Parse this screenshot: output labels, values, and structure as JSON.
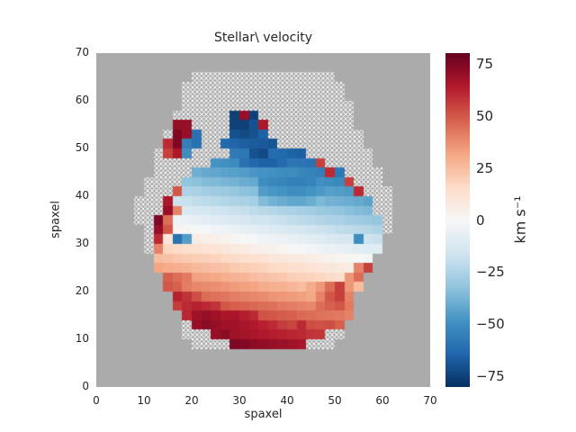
{
  "title": "Stellar\\ velocity",
  "axis": {
    "xlabel": "spaxel",
    "ylabel": "spaxel",
    "xticks": [
      0,
      10,
      20,
      30,
      40,
      50,
      60,
      70
    ],
    "yticks": [
      0,
      10,
      20,
      30,
      40,
      50,
      60,
      70
    ]
  },
  "colorbar": {
    "label": "km s⁻¹",
    "vmin": -80,
    "vmax": 80,
    "ticks": [
      {
        "v": 75,
        "label": "75"
      },
      {
        "v": 50,
        "label": "50"
      },
      {
        "v": 25,
        "label": "25"
      },
      {
        "v": 0,
        "label": "0"
      },
      {
        "v": -25,
        "label": "−25"
      },
      {
        "v": -50,
        "label": "−50"
      },
      {
        "v": -75,
        "label": "−75"
      }
    ],
    "cmap": [
      "#053061",
      "#2166ac",
      "#4393c3",
      "#92c5de",
      "#d1e5f0",
      "#f7f7f7",
      "#fddbc7",
      "#f4a582",
      "#d6604d",
      "#b2182b",
      "#67001f"
    ]
  },
  "colors": {
    "figure_bg": "#ffffff",
    "axes_bg": "#ababab",
    "hatch": "#ffffff",
    "text": "#262626"
  },
  "chart_data": {
    "type": "heatmap",
    "title": "Stellar\\ velocity",
    "xlabel": "spaxel",
    "ylabel": "spaxel",
    "units": "km s⁻¹",
    "xlim": [
      0,
      70
    ],
    "ylim": [
      0,
      70
    ],
    "value_range": [
      -75,
      75
    ],
    "cell_spaxels": 2,
    "grid_note": "35x35 grid, row 0 = top (y=68-70), col 0 = left (x=0-2); numbers = stellar velocity in km/s, 'h' = hatched no-data spaxel inside hexagonal IFU footprint, '.' = outside footprint (gray)",
    "grid": [
      [
        ".",
        ".",
        ".",
        ".",
        ".",
        ".",
        ".",
        ".",
        ".",
        ".",
        ".",
        ".",
        ".",
        ".",
        ".",
        ".",
        ".",
        ".",
        ".",
        ".",
        ".",
        ".",
        ".",
        ".",
        ".",
        ".",
        ".",
        ".",
        ".",
        ".",
        ".",
        ".",
        ".",
        ".",
        "."
      ],
      [
        ".",
        ".",
        ".",
        ".",
        ".",
        ".",
        ".",
        ".",
        ".",
        ".",
        ".",
        ".",
        ".",
        ".",
        ".",
        ".",
        ".",
        ".",
        ".",
        ".",
        ".",
        ".",
        ".",
        ".",
        ".",
        ".",
        ".",
        ".",
        ".",
        ".",
        ".",
        ".",
        ".",
        ".",
        "."
      ],
      [
        ".",
        ".",
        ".",
        ".",
        ".",
        ".",
        ".",
        ".",
        ".",
        ".",
        "h",
        "h",
        "h",
        "h",
        "h",
        "h",
        "h",
        "h",
        "h",
        "h",
        "h",
        "h",
        "h",
        "h",
        "h",
        ".",
        ".",
        ".",
        ".",
        ".",
        ".",
        ".",
        ".",
        ".",
        "."
      ],
      [
        ".",
        ".",
        ".",
        ".",
        ".",
        ".",
        ".",
        ".",
        ".",
        "h",
        "h",
        "h",
        "h",
        "h",
        "h",
        "h",
        "h",
        "h",
        "h",
        "h",
        "h",
        "h",
        "h",
        "h",
        "h",
        "h",
        ".",
        ".",
        ".",
        ".",
        ".",
        ".",
        ".",
        ".",
        "."
      ],
      [
        ".",
        ".",
        ".",
        ".",
        ".",
        ".",
        ".",
        ".",
        ".",
        "h",
        "h",
        "h",
        "h",
        "h",
        "h",
        "h",
        "h",
        "h",
        "h",
        "h",
        "h",
        "h",
        "h",
        "h",
        "h",
        "h",
        ".",
        ".",
        ".",
        ".",
        ".",
        ".",
        ".",
        ".",
        "."
      ],
      [
        ".",
        ".",
        ".",
        ".",
        ".",
        ".",
        ".",
        ".",
        ".",
        "h",
        "h",
        "h",
        "h",
        "h",
        "h",
        "h",
        "h",
        "h",
        "h",
        "h",
        "h",
        "h",
        "h",
        "h",
        "h",
        "h",
        "h",
        ".",
        ".",
        ".",
        ".",
        ".",
        ".",
        ".",
        "."
      ],
      [
        ".",
        ".",
        ".",
        ".",
        ".",
        ".",
        ".",
        ".",
        "h",
        "h",
        "h",
        "h",
        "h",
        "h",
        -75,
        70,
        -75,
        "h",
        "h",
        "h",
        "h",
        "h",
        "h",
        "h",
        "h",
        "h",
        "h",
        ".",
        ".",
        ".",
        ".",
        ".",
        ".",
        ".",
        "."
      ],
      [
        ".",
        ".",
        ".",
        ".",
        ".",
        ".",
        ".",
        ".",
        70,
        70,
        "h",
        "h",
        "h",
        "h",
        -75,
        -75,
        -70,
        65,
        "h",
        "h",
        "h",
        "h",
        "h",
        "h",
        "h",
        "h",
        "h",
        ".",
        ".",
        ".",
        ".",
        ".",
        ".",
        ".",
        "."
      ],
      [
        ".",
        ".",
        ".",
        ".",
        ".",
        ".",
        ".",
        "h",
        75,
        70,
        -60,
        "h",
        "h",
        "h",
        -70,
        -72,
        -70,
        -65,
        "h",
        "h",
        "h",
        "h",
        "h",
        "h",
        "h",
        "h",
        "h",
        "h",
        ".",
        ".",
        ".",
        ".",
        ".",
        ".",
        "."
      ],
      [
        ".",
        ".",
        ".",
        ".",
        ".",
        ".",
        ".",
        60,
        75,
        -55,
        -60,
        "h",
        "h",
        -63,
        -64,
        -66,
        -67,
        -68,
        -69,
        "h",
        "h",
        "h",
        "h",
        "h",
        "h",
        "h",
        "h",
        "h",
        ".",
        ".",
        ".",
        ".",
        ".",
        ".",
        "."
      ],
      [
        ".",
        ".",
        ".",
        ".",
        ".",
        ".",
        "h",
        55,
        65,
        -50,
        "h",
        "h",
        "h",
        "h",
        -57,
        -58,
        -70,
        -72,
        -62,
        -63,
        -65,
        -66,
        "h",
        "h",
        "h",
        "h",
        "h",
        "h",
        "h",
        ".",
        ".",
        ".",
        ".",
        ".",
        "."
      ],
      [
        ".",
        ".",
        ".",
        ".",
        ".",
        ".",
        "h",
        "h",
        "h",
        "h",
        "h",
        "h",
        -48,
        -49,
        -51,
        -60,
        -63,
        -65,
        -65,
        -62,
        -58,
        -59,
        -60,
        55,
        "h",
        "h",
        "h",
        "h",
        "h",
        ".",
        ".",
        ".",
        ".",
        ".",
        "."
      ],
      [
        ".",
        ".",
        ".",
        ".",
        ".",
        ".",
        "h",
        "h",
        "h",
        "h",
        -39,
        -41,
        -42,
        -43,
        -44,
        -45,
        -47,
        -48,
        -49,
        -50,
        -51,
        -53,
        -54,
        -55,
        60,
        -58,
        "h",
        "h",
        "h",
        "h",
        ".",
        ".",
        ".",
        ".",
        "."
      ],
      [
        ".",
        ".",
        ".",
        ".",
        ".",
        "h",
        "h",
        "h",
        "h",
        -32,
        -33,
        -35,
        -36,
        -37,
        -38,
        -40,
        -41,
        -50,
        -52,
        -53,
        -55,
        -55,
        -54,
        -49,
        -51,
        -52,
        55,
        "h",
        "h",
        "h",
        ".",
        ".",
        ".",
        ".",
        "."
      ],
      [
        ".",
        ".",
        ".",
        ".",
        ".",
        "h",
        "h",
        "h",
        50,
        -25,
        -26,
        -28,
        -29,
        -30,
        -31,
        -33,
        -34,
        -45,
        -47,
        -48,
        -50,
        -50,
        -48,
        -46,
        -44,
        -45,
        -46,
        60,
        "h",
        "h",
        "h",
        ".",
        ".",
        ".",
        "."
      ],
      [
        ".",
        ".",
        ".",
        ".",
        "h",
        "h",
        "h",
        65,
        -17,
        -18,
        -20,
        -21,
        -22,
        -24,
        -25,
        -26,
        -27,
        -35,
        -38,
        -40,
        -42,
        -42,
        -40,
        -36,
        -38,
        -39,
        -40,
        -41,
        -43,
        "h",
        "h",
        ".",
        ".",
        ".",
        "."
      ],
      [
        ".",
        ".",
        ".",
        ".",
        "h",
        "h",
        "h",
        70,
        40,
        -12,
        -13,
        -14,
        -16,
        -17,
        -18,
        -19,
        -21,
        -22,
        -23,
        -25,
        -26,
        -27,
        -28,
        -30,
        -31,
        -32,
        -34,
        -35,
        -36,
        "h",
        "h",
        ".",
        ".",
        ".",
        "."
      ],
      [
        ".",
        ".",
        ".",
        ".",
        "h",
        "h",
        75,
        45,
        -4,
        -5,
        -7,
        -8,
        -9,
        -11,
        -12,
        -13,
        -15,
        -16,
        -17,
        -18,
        -20,
        -21,
        -22,
        -24,
        -25,
        -26,
        -28,
        -29,
        -30,
        -31,
        "h",
        ".",
        ".",
        ".",
        "."
      ],
      [
        ".",
        ".",
        ".",
        ".",
        ".",
        "h",
        70,
        50,
        2,
        1,
        0,
        -1,
        -3,
        -4,
        -5,
        -7,
        -8,
        -9,
        -11,
        -12,
        -13,
        -14,
        -16,
        -17,
        -18,
        -20,
        -21,
        -22,
        -23,
        -25,
        "h",
        ".",
        ".",
        ".",
        "."
      ],
      [
        ".",
        ".",
        ".",
        ".",
        ".",
        "h",
        60,
        10,
        -60,
        -45,
        6,
        5,
        4,
        3,
        1,
        0,
        -1,
        -3,
        -4,
        -5,
        -6,
        -8,
        -9,
        -10,
        -12,
        -13,
        -14,
        -50,
        -17,
        -18,
        ".",
        ".",
        ".",
        ".",
        "."
      ],
      [
        ".",
        ".",
        ".",
        ".",
        ".",
        "h",
        40,
        17,
        16,
        14,
        13,
        12,
        11,
        9,
        8,
        7,
        5,
        4,
        3,
        2,
        0,
        -1,
        -2,
        -4,
        -5,
        -6,
        -7,
        -9,
        -10,
        -11,
        ".",
        ".",
        ".",
        ".",
        "."
      ],
      [
        ".",
        ".",
        ".",
        ".",
        ".",
        ".",
        25,
        24,
        22,
        21,
        20,
        19,
        18,
        16,
        15,
        14,
        13,
        12,
        10,
        9,
        8,
        7,
        6,
        4,
        3,
        2,
        1,
        0,
        -2,
        ".",
        ".",
        ".",
        ".",
        ".",
        "."
      ],
      [
        ".",
        ".",
        ".",
        ".",
        ".",
        ".",
        32,
        30,
        29,
        28,
        26,
        25,
        24,
        23,
        21,
        20,
        19,
        18,
        16,
        15,
        14,
        13,
        11,
        10,
        9,
        8,
        6,
        40,
        55,
        ".",
        ".",
        ".",
        ".",
        ".",
        "."
      ],
      [
        ".",
        ".",
        ".",
        ".",
        ".",
        ".",
        ".",
        48,
        45,
        42,
        33,
        32,
        31,
        29,
        28,
        27,
        25,
        24,
        23,
        22,
        20,
        19,
        18,
        17,
        15,
        14,
        35,
        45,
        ".",
        ".",
        ".",
        ".",
        ".",
        ".",
        "."
      ],
      [
        ".",
        ".",
        ".",
        ".",
        ".",
        ".",
        ".",
        50,
        48,
        41,
        39,
        38,
        37,
        36,
        34,
        33,
        32,
        30,
        29,
        28,
        27,
        25,
        30,
        35,
        45,
        55,
        35,
        25,
        ".",
        ".",
        ".",
        ".",
        ".",
        ".",
        "."
      ],
      [
        ".",
        ".",
        ".",
        ".",
        ".",
        ".",
        ".",
        ".",
        62,
        58,
        52,
        45,
        44,
        43,
        41,
        40,
        39,
        38,
        36,
        35,
        34,
        33,
        31,
        40,
        50,
        55,
        40,
        ".",
        ".",
        ".",
        ".",
        ".",
        ".",
        ".",
        "."
      ],
      [
        ".",
        ".",
        ".",
        ".",
        ".",
        ".",
        ".",
        ".",
        56,
        60,
        62,
        60,
        58,
        50,
        48,
        47,
        46,
        45,
        44,
        42,
        41,
        40,
        39,
        45,
        48,
        50,
        42,
        ".",
        ".",
        ".",
        ".",
        ".",
        ".",
        ".",
        "."
      ],
      [
        ".",
        ".",
        ".",
        ".",
        ".",
        ".",
        ".",
        ".",
        ".",
        61,
        68,
        70,
        68,
        65,
        66,
        63,
        60,
        51,
        50,
        49,
        48,
        46,
        45,
        44,
        43,
        42,
        40,
        ".",
        ".",
        ".",
        ".",
        ".",
        ".",
        ".",
        "."
      ],
      [
        ".",
        ".",
        ".",
        ".",
        ".",
        ".",
        ".",
        ".",
        ".",
        "h",
        70,
        72,
        70,
        68,
        68,
        66,
        64,
        62,
        60,
        56,
        54,
        60,
        52,
        51,
        52,
        48,
        ".",
        ".",
        ".",
        ".",
        ".",
        ".",
        ".",
        ".",
        "."
      ],
      [
        ".",
        ".",
        ".",
        ".",
        ".",
        ".",
        ".",
        ".",
        ".",
        "h",
        "h",
        "h",
        70,
        72,
        68,
        67,
        66,
        64,
        63,
        62,
        61,
        60,
        58,
        57,
        "h",
        "h",
        ".",
        ".",
        ".",
        ".",
        ".",
        ".",
        ".",
        ".",
        "."
      ],
      [
        ".",
        ".",
        ".",
        ".",
        ".",
        ".",
        ".",
        ".",
        ".",
        ".",
        "h",
        "h",
        "h",
        "h",
        75,
        74,
        72,
        71,
        70,
        69,
        68,
        66,
        "h",
        "h",
        "h",
        ".",
        ".",
        ".",
        ".",
        ".",
        ".",
        ".",
        ".",
        ".",
        "."
      ],
      [
        ".",
        ".",
        ".",
        ".",
        ".",
        ".",
        ".",
        ".",
        ".",
        ".",
        ".",
        ".",
        ".",
        ".",
        ".",
        ".",
        ".",
        ".",
        ".",
        ".",
        ".",
        ".",
        ".",
        ".",
        ".",
        ".",
        ".",
        ".",
        ".",
        ".",
        ".",
        ".",
        ".",
        ".",
        "."
      ],
      [
        ".",
        ".",
        ".",
        ".",
        ".",
        ".",
        ".",
        ".",
        ".",
        ".",
        ".",
        ".",
        ".",
        ".",
        ".",
        ".",
        ".",
        ".",
        ".",
        ".",
        ".",
        ".",
        ".",
        ".",
        ".",
        ".",
        ".",
        ".",
        ".",
        ".",
        ".",
        ".",
        ".",
        ".",
        "."
      ],
      [
        ".",
        ".",
        ".",
        ".",
        ".",
        ".",
        ".",
        ".",
        ".",
        ".",
        ".",
        ".",
        ".",
        ".",
        ".",
        ".",
        ".",
        ".",
        ".",
        ".",
        ".",
        ".",
        ".",
        ".",
        ".",
        ".",
        ".",
        ".",
        ".",
        ".",
        ".",
        ".",
        ".",
        ".",
        "."
      ],
      [
        ".",
        ".",
        ".",
        ".",
        ".",
        ".",
        ".",
        ".",
        ".",
        ".",
        ".",
        ".",
        ".",
        ".",
        ".",
        ".",
        ".",
        ".",
        ".",
        ".",
        ".",
        ".",
        ".",
        ".",
        ".",
        ".",
        ".",
        ".",
        ".",
        ".",
        ".",
        ".",
        ".",
        ".",
        "."
      ]
    ]
  }
}
